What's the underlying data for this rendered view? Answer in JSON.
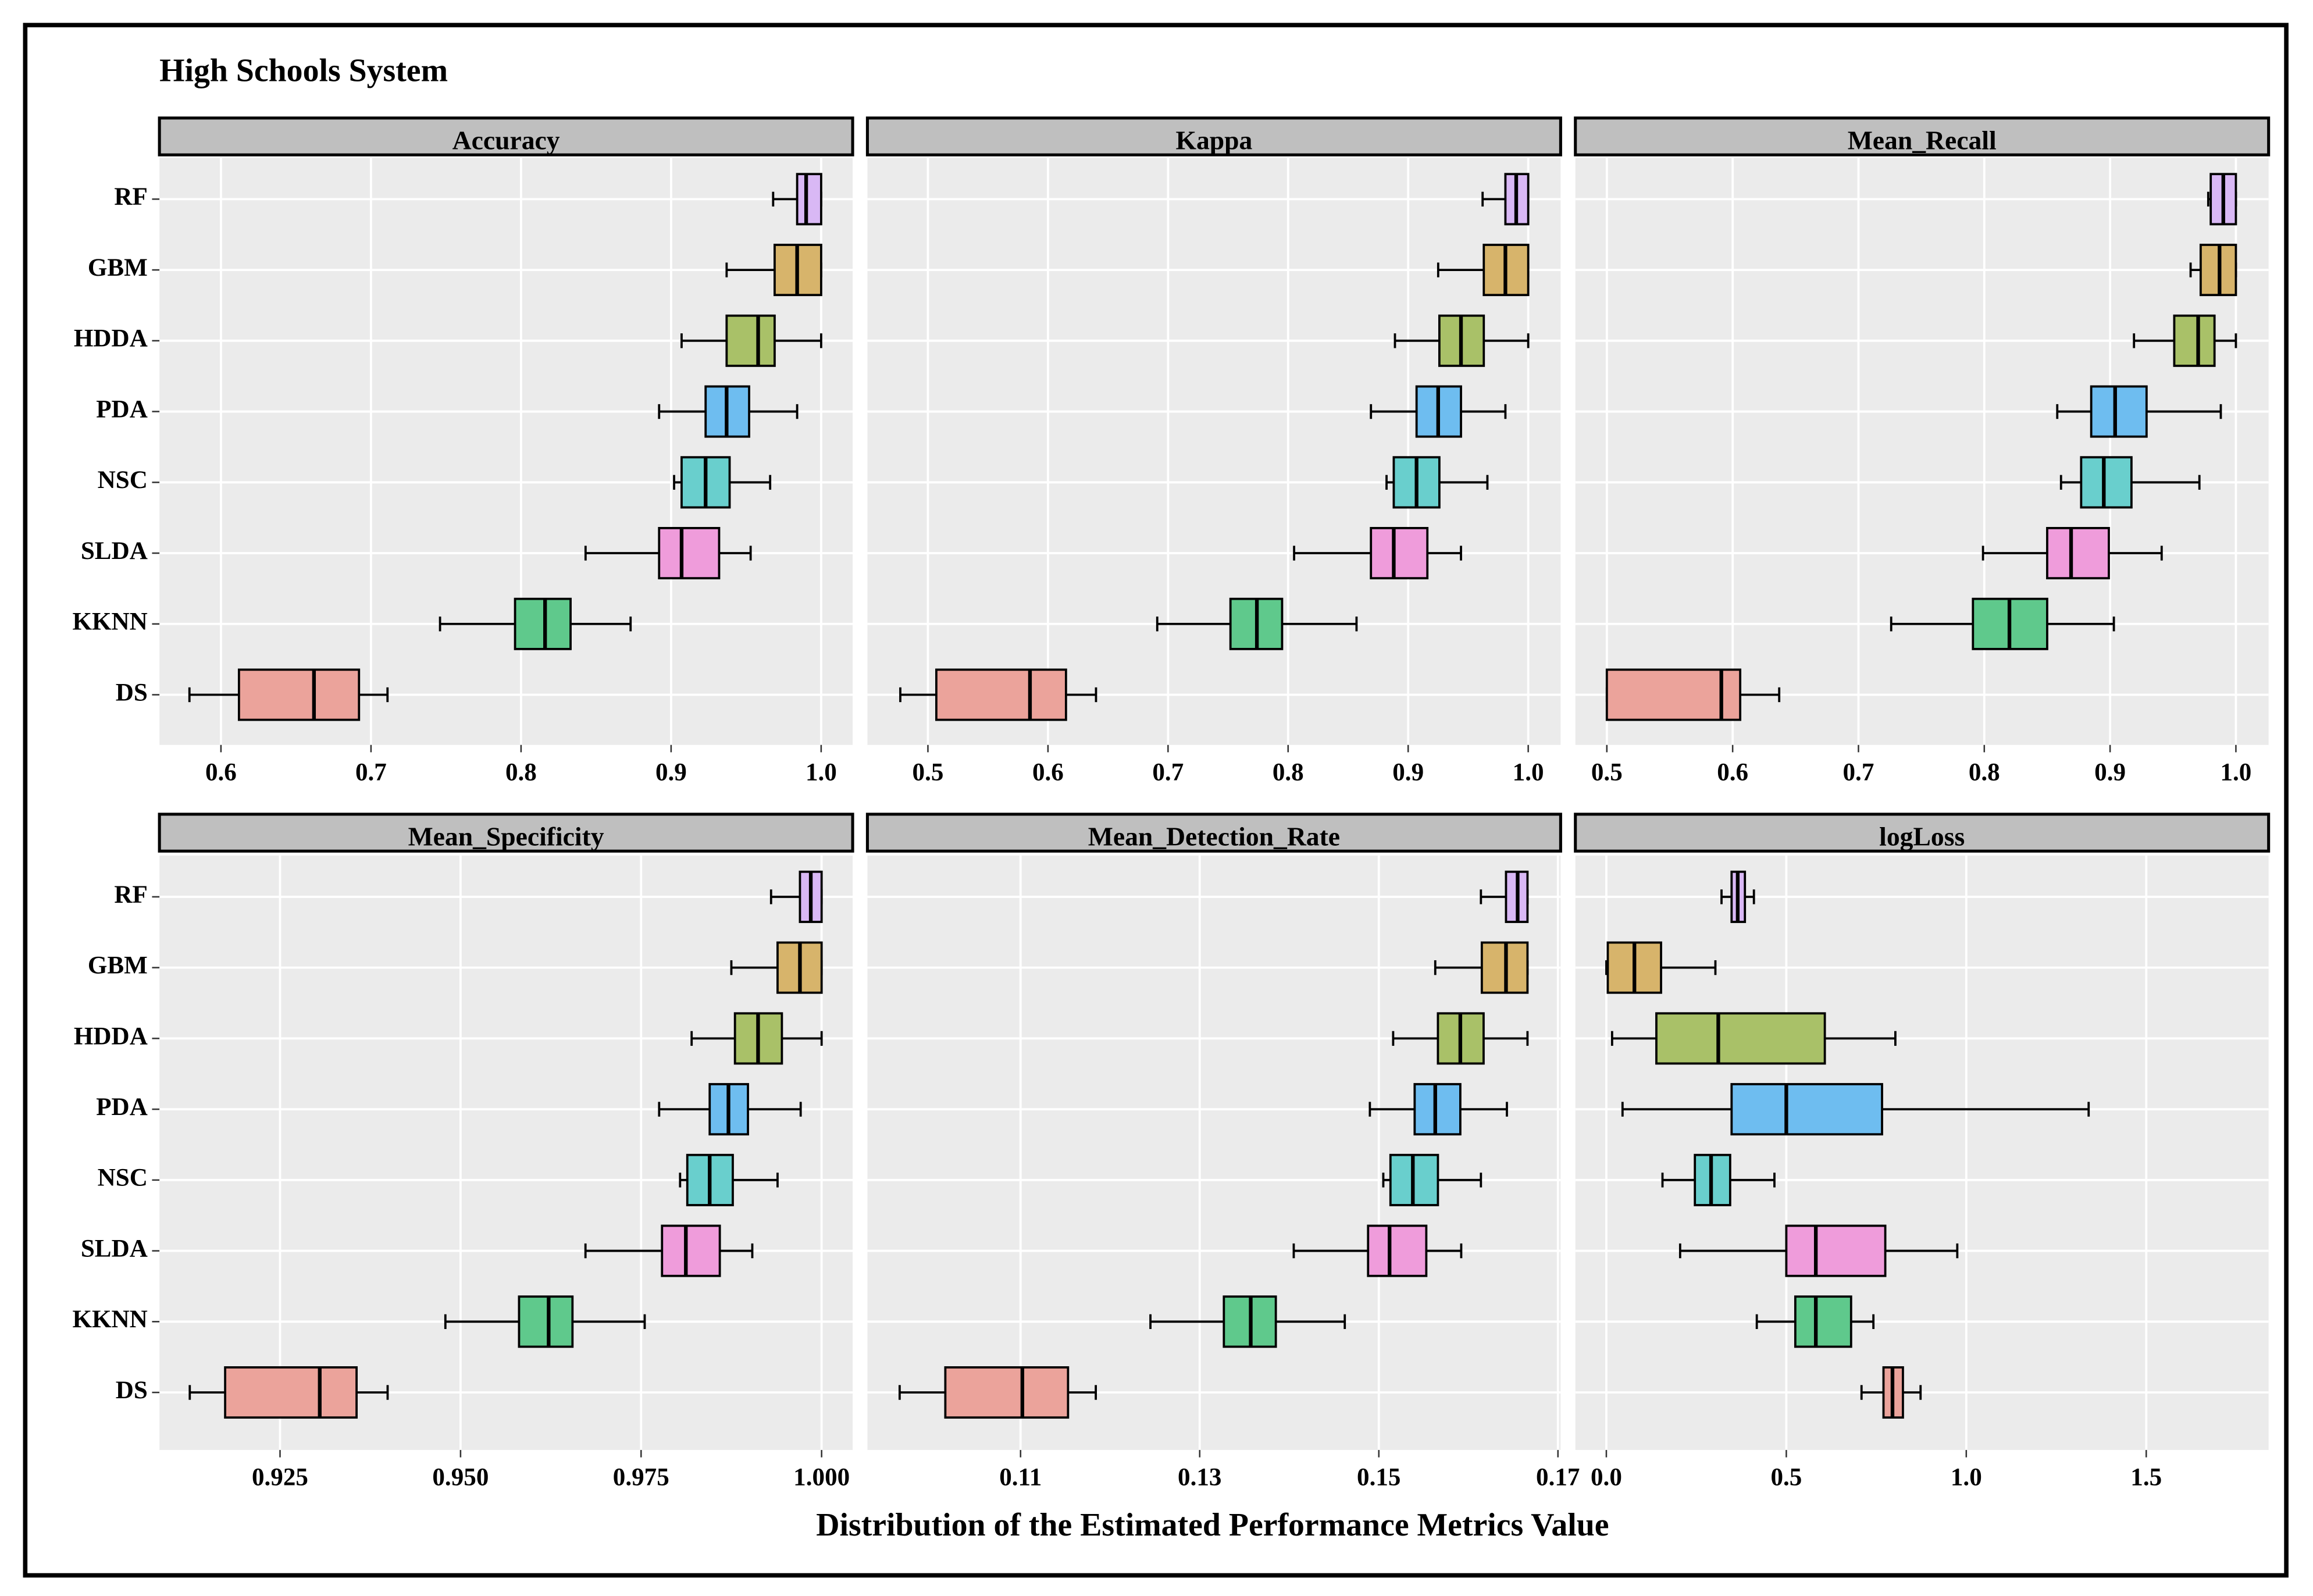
{
  "title": "High Schools System",
  "x_label": "Distribution of the Estimated Performance Metrics Value",
  "categories": [
    "RF",
    "GBM",
    "HDDA",
    "PDA",
    "NSC",
    "SLDA",
    "KKNN",
    "DS"
  ],
  "colors": [
    "#d9b8f5",
    "#d7b46b",
    "#a9c168",
    "#6ebdf0",
    "#69cfcd",
    "#ef9cdb",
    "#5fc98c",
    "#eba39b"
  ],
  "chart_data": [
    {
      "type": "box",
      "title": "Accuracy",
      "min": [
        0.968,
        0.937,
        0.907,
        0.892,
        0.902,
        0.843,
        0.746,
        0.579
      ],
      "q1": [
        0.984,
        0.969,
        0.937,
        0.923,
        0.907,
        0.892,
        0.796,
        0.612
      ],
      "median": [
        0.99,
        0.984,
        0.958,
        0.937,
        0.923,
        0.907,
        0.816,
        0.662
      ],
      "q3": [
        1.0,
        1.0,
        0.969,
        0.952,
        0.939,
        0.932,
        0.833,
        0.692
      ],
      "max": [
        1.0,
        1.0,
        1.0,
        0.984,
        0.966,
        0.953,
        0.873,
        0.711
      ],
      "xlim": [
        0.559,
        1.021
      ],
      "xticks": [
        0.6,
        0.7,
        0.8,
        0.9,
        {
          "value": 1,
          "label": "1.0"
        }
      ],
      "grid": true
    },
    {
      "type": "box",
      "title": "Kappa",
      "min": [
        0.962,
        0.925,
        0.889,
        0.869,
        0.882,
        0.805,
        0.691,
        0.477
      ],
      "q1": [
        0.981,
        0.963,
        0.926,
        0.907,
        0.888,
        0.869,
        0.752,
        0.507
      ],
      "median": [
        0.99,
        0.981,
        0.944,
        0.925,
        0.907,
        0.888,
        0.774,
        0.585
      ],
      "q3": [
        1.0,
        1.0,
        0.963,
        0.944,
        0.926,
        0.916,
        0.795,
        0.615
      ],
      "max": [
        1.0,
        1.0,
        1.0,
        0.981,
        0.966,
        0.944,
        0.857,
        0.64
      ],
      "xlim": [
        0.4496,
        1.027
      ],
      "xticks": [
        0.5,
        0.6,
        0.7,
        0.8,
        0.9,
        {
          "value": 1,
          "label": "1.0"
        }
      ],
      "grid": true
    },
    {
      "type": "box",
      "title": "Mean_Recall",
      "min": [
        0.978,
        0.964,
        0.919,
        0.858,
        0.861,
        0.799,
        0.726,
        0.5
      ],
      "q1": [
        0.98,
        0.972,
        0.951,
        0.885,
        0.877,
        0.85,
        0.791,
        0.5
      ],
      "median": [
        0.99,
        0.987,
        0.97,
        0.904,
        0.895,
        0.869,
        0.82,
        0.591
      ],
      "q3": [
        1.0,
        1.0,
        0.983,
        0.929,
        0.917,
        0.899,
        0.85,
        0.606
      ],
      "max": [
        1.0,
        1.0,
        1.0,
        0.988,
        0.971,
        0.941,
        0.903,
        0.637
      ],
      "xlim": [
        0.475,
        1.026
      ],
      "xticks": [
        0.5,
        0.6,
        0.7,
        0.8,
        0.9,
        {
          "value": 1,
          "label": "1.0"
        }
      ],
      "grid": true
    },
    {
      "type": "box",
      "title": "Mean_Specificity",
      "min": [
        0.993,
        0.9875,
        0.982,
        0.9775,
        0.9804,
        0.9673,
        0.9479,
        0.9125
      ],
      "q1": [
        0.997,
        0.9939,
        0.988,
        0.9845,
        0.9814,
        0.9779,
        0.9581,
        0.9174
      ],
      "median": [
        0.9985,
        0.997,
        0.9912,
        0.9871,
        0.9845,
        0.9812,
        0.9622,
        0.9305
      ],
      "q3": [
        1.0,
        1.0,
        0.9945,
        0.9898,
        0.9877,
        0.9859,
        0.9655,
        0.9356
      ],
      "max": [
        1.0,
        1.0,
        1.0,
        0.9971,
        0.9939,
        0.9904,
        0.9755,
        0.9399
      ],
      "xlim": [
        0.9083,
        1.0043
      ],
      "xticks": [
        0.925,
        {
          "value": 0.95,
          "label": "0.950"
        },
        0.975,
        {
          "value": 1,
          "label": "1.000"
        }
      ],
      "grid": true
    },
    {
      "type": "box",
      "title": "Mean_Detection_Rate",
      "min": [
        0.1614,
        0.1563,
        0.1516,
        0.149,
        0.1505,
        0.1405,
        0.1245,
        0.0965
      ],
      "q1": [
        0.1642,
        0.1615,
        0.1566,
        0.154,
        0.1513,
        0.1488,
        0.1327,
        0.1016
      ],
      "median": [
        0.1655,
        0.1642,
        0.1591,
        0.1563,
        0.1538,
        0.1512,
        0.1357,
        0.1102
      ],
      "q3": [
        0.1666,
        0.1666,
        0.1617,
        0.1591,
        0.1566,
        0.1553,
        0.1385,
        0.1153
      ],
      "max": [
        0.1666,
        0.1666,
        0.1666,
        0.1643,
        0.1614,
        0.1592,
        0.1462,
        0.1184
      ],
      "xlim": [
        0.0929,
        0.1703
      ],
      "xticks": [
        0.11,
        0.13,
        0.15,
        0.17
      ],
      "grid": true
    },
    {
      "type": "box",
      "title": "logLoss",
      "min": [
        0.32,
        0.0,
        0.016,
        0.045,
        0.156,
        0.205,
        0.418,
        0.709
      ],
      "q1": [
        0.348,
        0.004,
        0.139,
        0.348,
        0.246,
        0.5,
        0.525,
        0.77
      ],
      "median": [
        0.365,
        0.078,
        0.311,
        0.5,
        0.291,
        0.582,
        0.582,
        0.795
      ],
      "q3": [
        0.385,
        0.152,
        0.607,
        0.766,
        0.344,
        0.775,
        0.68,
        0.824
      ],
      "max": [
        0.41,
        0.303,
        0.803,
        1.34,
        0.467,
        0.975,
        0.742,
        0.873
      ],
      "xlim": [
        -0.086,
        1.84
      ],
      "xticks": [
        {
          "value": 0,
          "label": "0.0"
        },
        0.5,
        {
          "value": 1,
          "label": "1.0"
        },
        1.5
      ],
      "grid": true
    }
  ]
}
